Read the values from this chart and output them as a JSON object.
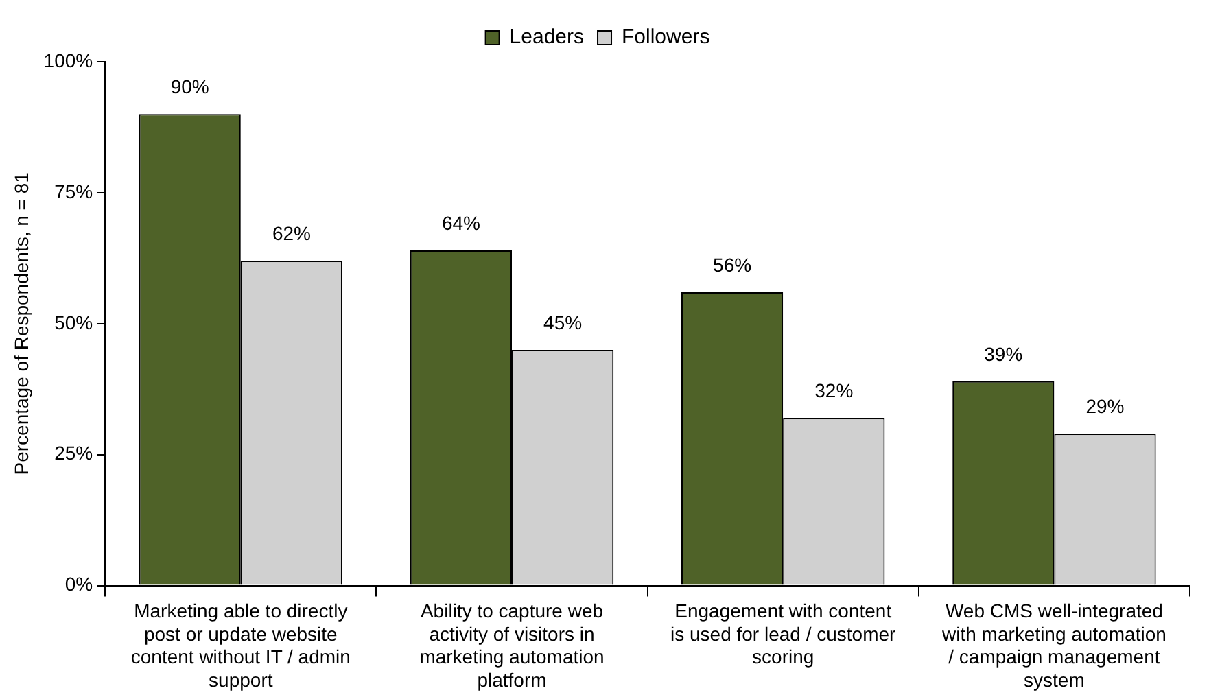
{
  "chart_data": {
    "type": "bar",
    "ylabel": "Percentage of Respondents, n = 81",
    "categories": [
      "Marketing able to directly post or update website content without IT / admin support",
      "Ability to capture web activity of visitors in marketing automation platform",
      "Engagement with content is used for lead / customer scoring",
      "Web CMS well-integrated with marketing automation / campaign management system"
    ],
    "series": [
      {
        "name": "Leaders",
        "color": "#4f6228",
        "values": [
          90,
          64,
          56,
          39
        ],
        "value_labels": [
          "90%",
          "64%",
          "56%",
          "39%"
        ]
      },
      {
        "name": "Followers",
        "color": "#d0d0d0",
        "values": [
          62,
          45,
          32,
          29
        ],
        "value_labels": [
          "62%",
          "45%",
          "32%",
          "29%"
        ]
      }
    ],
    "ylim": [
      0,
      100
    ],
    "yticks": [
      {
        "value": 0,
        "label": "0%"
      },
      {
        "value": 25,
        "label": "25%"
      },
      {
        "value": 50,
        "label": "50%"
      },
      {
        "value": 75,
        "label": "75%"
      },
      {
        "value": 100,
        "label": "100%"
      }
    ],
    "grid": false,
    "legend": "top"
  }
}
